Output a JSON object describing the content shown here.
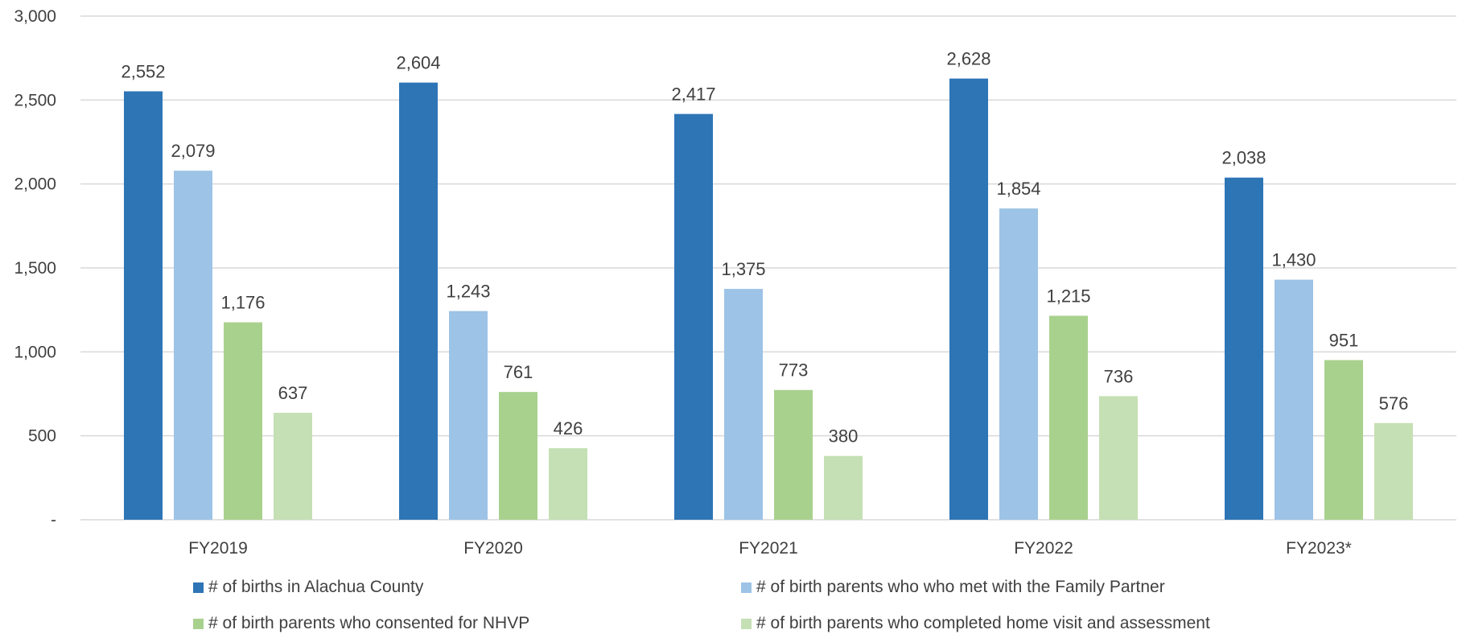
{
  "chart_data": {
    "type": "bar",
    "categories": [
      "FY2019",
      "FY2020",
      "FY2021",
      "FY2022",
      "FY2023*"
    ],
    "series": [
      {
        "name": "# of births in Alachua County",
        "color": "#2E75B6",
        "values": [
          2552,
          2604,
          2417,
          2628,
          2038
        ]
      },
      {
        "name": "# of birth parents who who met with the Family Partner",
        "color": "#9DC3E6",
        "values": [
          2079,
          1243,
          1375,
          1854,
          1430
        ]
      },
      {
        "name": "# of birth parents who consented for NHVP",
        "color": "#A9D18E",
        "values": [
          1176,
          761,
          773,
          1215,
          951
        ]
      },
      {
        "name": "# of birth parents who completed home visit and assessment",
        "color": "#C5E0B4",
        "values": [
          637,
          426,
          380,
          736,
          576
        ]
      }
    ],
    "data_labels": [
      [
        "2,552",
        "2,604",
        "2,417",
        "2,628",
        "2,038"
      ],
      [
        "2,079",
        "1,243",
        "1,375",
        "1,854",
        "1,430"
      ],
      [
        "1,176",
        "761",
        "773",
        "1,215",
        "951"
      ],
      [
        "637",
        "426",
        "380",
        "736",
        "576"
      ]
    ],
    "yticks": [
      {
        "value": 0,
        "label": "-"
      },
      {
        "value": 500,
        "label": "500"
      },
      {
        "value": 1000,
        "label": "1,000"
      },
      {
        "value": 1500,
        "label": "1,500"
      },
      {
        "value": 2000,
        "label": "2,000"
      },
      {
        "value": 2500,
        "label": "2,500"
      },
      {
        "value": 3000,
        "label": "3,000"
      }
    ],
    "ylim": [
      0,
      3000
    ],
    "grid": true,
    "legend_position": "bottom",
    "gridline_color": "#D9D9D9"
  }
}
